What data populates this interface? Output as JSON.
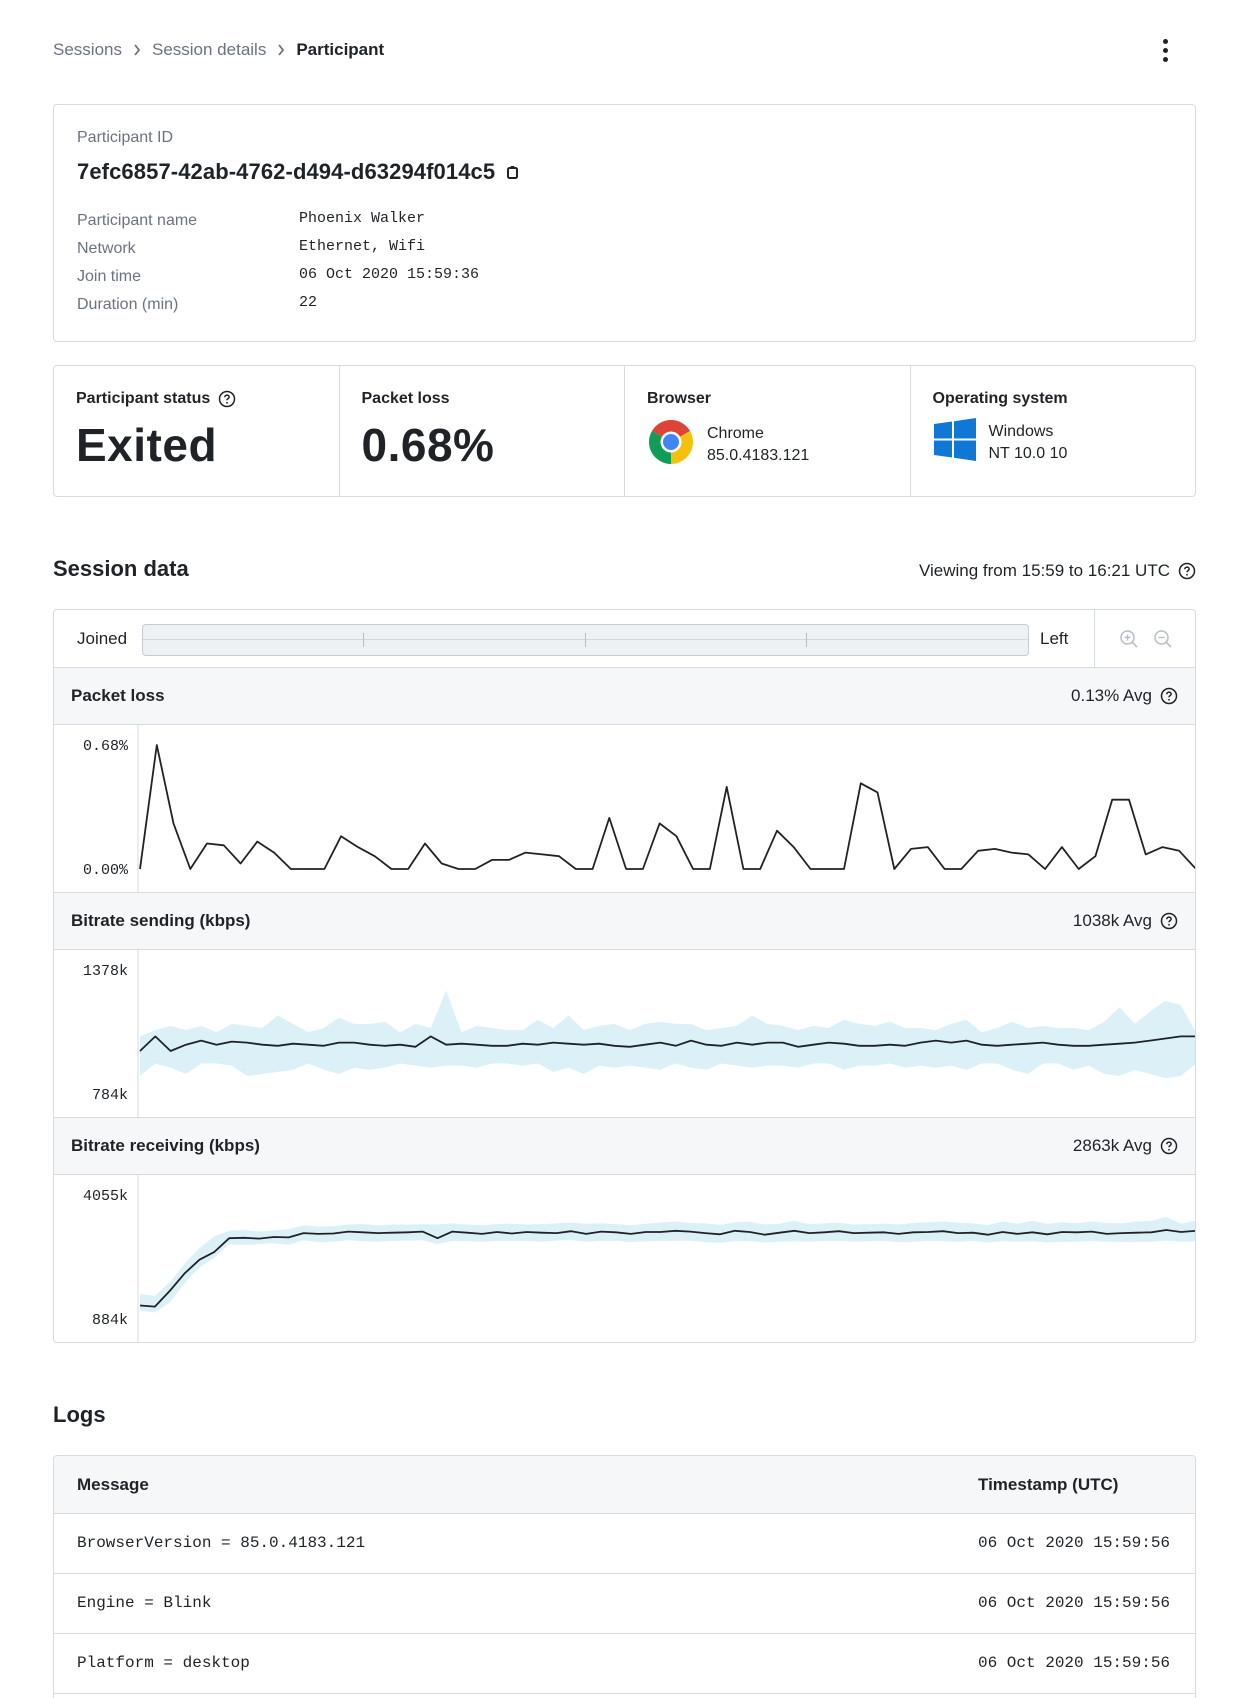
{
  "breadcrumb": [
    "Sessions",
    "Session details",
    "Participant"
  ],
  "participant": {
    "id_label": "Participant ID",
    "id": "7efc6857-42ab-4762-d494-d63294f014c5",
    "fields": [
      {
        "label": "Participant name",
        "value": "Phoenix Walker"
      },
      {
        "label": "Network",
        "value": "Ethernet, Wifi"
      },
      {
        "label": "Join time",
        "value": "06 Oct 2020 15:59:36"
      },
      {
        "label": "Duration (min)",
        "value": "22"
      }
    ]
  },
  "stats": {
    "status": {
      "label": "Participant status",
      "value": "Exited"
    },
    "packet_loss": {
      "label": "Packet loss",
      "value": "0.68%"
    },
    "browser": {
      "label": "Browser",
      "name": "Chrome",
      "version": "85.0.4183.121",
      "icon": "chrome-icon"
    },
    "os": {
      "label": "Operating system",
      "name": "Windows",
      "version": "NT 10.0 10",
      "icon": "windows-icon"
    }
  },
  "session_data": {
    "title": "Session data",
    "viewing": "Viewing from 15:59 to 16:21 UTC",
    "timeline": {
      "start_label": "Joined",
      "end_label": "Left"
    },
    "colors": {
      "line": "#1f2328",
      "band": "#dcf1f7",
      "grid": "#d6dbe1"
    }
  },
  "chart_data": [
    {
      "type": "line",
      "title": "Packet loss",
      "avg_label": "0.13% Avg",
      "y_labels": [
        "0.68%",
        "0.00%"
      ],
      "ylim": [
        0,
        0.68
      ],
      "values": [
        0.0,
        0.68,
        0.25,
        0.0,
        0.14,
        0.13,
        0.03,
        0.15,
        0.09,
        0.0,
        0.0,
        0.0,
        0.18,
        0.12,
        0.07,
        0.0,
        0.0,
        0.14,
        0.03,
        0.0,
        0.0,
        0.05,
        0.05,
        0.09,
        0.08,
        0.07,
        0.0,
        0.0,
        0.28,
        0.0,
        0.0,
        0.25,
        0.18,
        0.0,
        0.0,
        0.45,
        0.0,
        0.0,
        0.21,
        0.12,
        0.0,
        0.0,
        0.0,
        0.47,
        0.42,
        0.0,
        0.11,
        0.12,
        0.0,
        0.0,
        0.1,
        0.11,
        0.09,
        0.08,
        0.0,
        0.12,
        0.0,
        0.07,
        0.38,
        0.38,
        0.08,
        0.12,
        0.1,
        0.0
      ]
    },
    {
      "type": "area",
      "title": "Bitrate sending (kbps)",
      "avg_label": "1038k Avg",
      "y_labels": [
        "1378k",
        "784k"
      ],
      "ylim": [
        784,
        1378
      ],
      "values": [
        990,
        1060,
        990,
        1020,
        1040,
        1020,
        1035,
        1030,
        1020,
        1015,
        1025,
        1020,
        1015,
        1030,
        1030,
        1020,
        1015,
        1020,
        1010,
        1060,
        1020,
        1025,
        1020,
        1015,
        1015,
        1025,
        1020,
        1030,
        1025,
        1020,
        1025,
        1015,
        1010,
        1020,
        1030,
        1015,
        1040,
        1020,
        1015,
        1030,
        1020,
        1030,
        1030,
        1010,
        1020,
        1030,
        1025,
        1015,
        1015,
        1020,
        1015,
        1030,
        1040,
        1030,
        1040,
        1020,
        1015,
        1020,
        1025,
        1030,
        1020,
        1015,
        1015,
        1020,
        1025,
        1030,
        1040,
        1050,
        1060,
        1060
      ],
      "band_upper": [
        1060,
        1090,
        1110,
        1090,
        1110,
        1080,
        1120,
        1110,
        1100,
        1160,
        1120,
        1080,
        1100,
        1150,
        1120,
        1120,
        1130,
        1080,
        1120,
        1100,
        1280,
        1080,
        1110,
        1100,
        1090,
        1090,
        1140,
        1100,
        1160,
        1090,
        1110,
        1120,
        1090,
        1120,
        1130,
        1120,
        1120,
        1090,
        1100,
        1110,
        1160,
        1120,
        1110,
        1090,
        1110,
        1100,
        1140,
        1120,
        1110,
        1130,
        1100,
        1100,
        1090,
        1120,
        1140,
        1080,
        1100,
        1130,
        1100,
        1110,
        1100,
        1100,
        1090,
        1130,
        1200,
        1120,
        1180,
        1230,
        1210,
        1080
      ],
      "band_lower": [
        870,
        930,
        910,
        880,
        930,
        930,
        920,
        870,
        880,
        890,
        900,
        930,
        900,
        880,
        910,
        900,
        910,
        930,
        920,
        910,
        920,
        920,
        910,
        930,
        930,
        920,
        930,
        890,
        910,
        880,
        920,
        910,
        920,
        910,
        900,
        930,
        910,
        900,
        930,
        920,
        910,
        920,
        920,
        910,
        930,
        930,
        900,
        920,
        920,
        930,
        910,
        920,
        910,
        920,
        900,
        930,
        930,
        900,
        880,
        930,
        930,
        900,
        920,
        880,
        870,
        900,
        880,
        860,
        870,
        930
      ]
    },
    {
      "type": "area",
      "title": "Bitrate receiving (kbps)",
      "avg_label": "2863k Avg",
      "y_labels": [
        "4055k",
        "884k"
      ],
      "ylim": [
        884,
        4055
      ],
      "values": [
        1230,
        1200,
        1600,
        2050,
        2400,
        2600,
        2950,
        2960,
        2940,
        2980,
        2970,
        3080,
        3060,
        3070,
        3120,
        3100,
        3080,
        3090,
        3100,
        3120,
        2950,
        3120,
        3090,
        3060,
        3110,
        3070,
        3110,
        3090,
        3080,
        3130,
        3060,
        3120,
        3100,
        3060,
        3110,
        3110,
        3140,
        3120,
        3080,
        3050,
        3140,
        3110,
        3040,
        3090,
        3140,
        3080,
        3100,
        3130,
        3080,
        3090,
        3100,
        3060,
        3100,
        3110,
        3130,
        3080,
        3090,
        3040,
        3110,
        3060,
        3100,
        3050,
        3110,
        3100,
        3120,
        3060,
        3080,
        3090,
        3100,
        3160,
        3110,
        3140
      ],
      "band_upper": [
        1520,
        1480,
        1820,
        2300,
        2700,
        3000,
        3140,
        3160,
        3120,
        3150,
        3180,
        3280,
        3250,
        3260,
        3300,
        3310,
        3280,
        3300,
        3300,
        3310,
        3300,
        3330,
        3300,
        3280,
        3310,
        3320,
        3300,
        3310,
        3330,
        3350,
        3320,
        3330,
        3310,
        3280,
        3320,
        3350,
        3380,
        3340,
        3330,
        3290,
        3360,
        3370,
        3300,
        3320,
        3400,
        3310,
        3330,
        3350,
        3300,
        3310,
        3320,
        3300,
        3340,
        3360,
        3380,
        3350,
        3330,
        3280,
        3380,
        3320,
        3400,
        3320,
        3360,
        3330,
        3380,
        3340,
        3330,
        3380,
        3390,
        3500,
        3320,
        3400
      ],
      "band_lower": [
        1100,
        1050,
        1300,
        1800,
        2200,
        2450,
        2800,
        2780,
        2800,
        2820,
        2780,
        2900,
        2850,
        2860,
        2900,
        2870,
        2860,
        2880,
        2890,
        2900,
        2800,
        2880,
        2870,
        2860,
        2880,
        2880,
        2880,
        2860,
        2890,
        2900,
        2860,
        2880,
        2880,
        2850,
        2870,
        2880,
        2880,
        2890,
        2850,
        2830,
        2880,
        2870,
        2840,
        2860,
        2870,
        2860,
        2880,
        2880,
        2860,
        2870,
        2880,
        2850,
        2860,
        2880,
        2870,
        2860,
        2880,
        2840,
        2870,
        2860,
        2870,
        2840,
        2860,
        2860,
        2880,
        2860,
        2850,
        2860,
        2860,
        2890,
        2860,
        2870
      ]
    }
  ],
  "logs": {
    "title": "Logs",
    "columns": [
      "Message",
      "Timestamp (UTC)"
    ],
    "rows": [
      {
        "message": "BrowserVersion = 85.0.4183.121",
        "timestamp": "06 Oct 2020 15:59:56"
      },
      {
        "message": "Engine = Blink",
        "timestamp": "06 Oct 2020 15:59:56"
      },
      {
        "message": "Platform = desktop",
        "timestamp": "06 Oct 2020 15:59:56"
      }
    ]
  }
}
